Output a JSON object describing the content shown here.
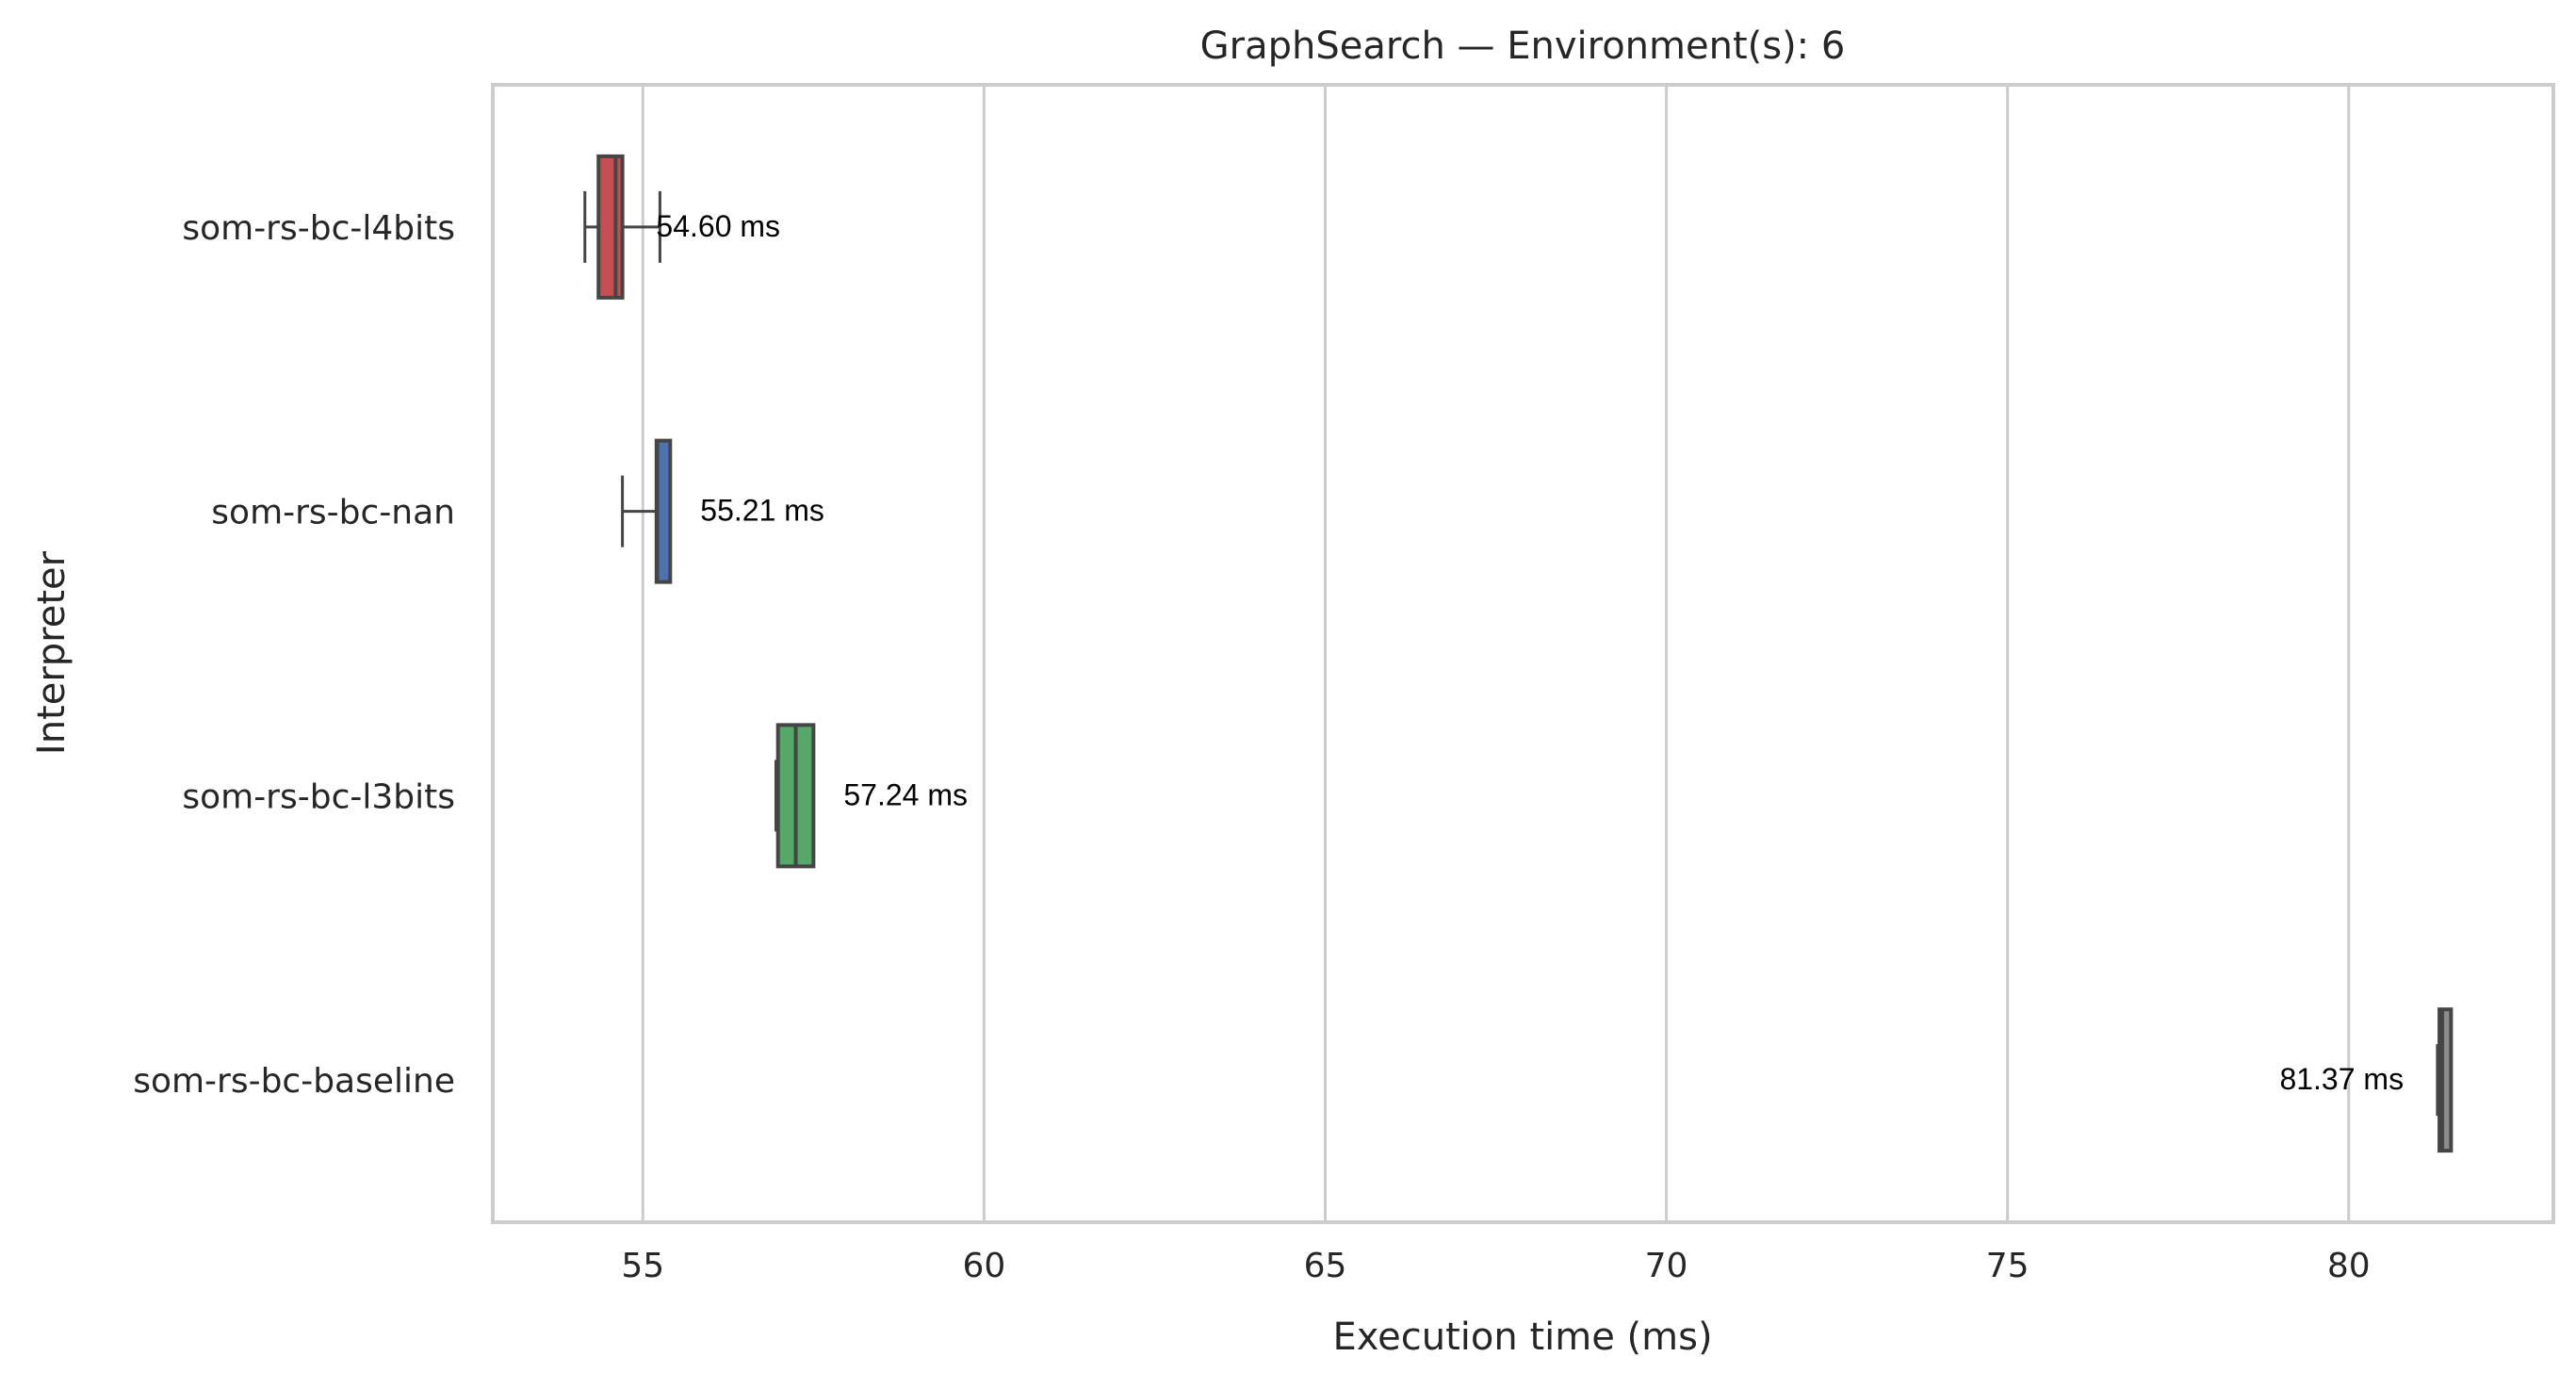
{
  "chart_data": {
    "type": "box",
    "title": "GraphSearch — Environment(s): 6",
    "xlabel": "Execution time (ms)",
    "ylabel": "Interpreter",
    "xlim": [
      52.8,
      83.0
    ],
    "xticks": [
      55,
      60,
      65,
      70,
      75,
      80
    ],
    "grid": "vertical",
    "orientation": "horizontal",
    "series": [
      {
        "name": "som-rs-bc-l4bits",
        "color": "#c44e52",
        "whisker_low": 54.15,
        "q1": 54.35,
        "median": 54.6,
        "q3": 54.7,
        "whisker_high": 55.25,
        "label": "54.60 ms"
      },
      {
        "name": "som-rs-bc-nan",
        "color": "#4c72b0",
        "whisker_low": 54.7,
        "q1": 55.2,
        "median": 55.21,
        "q3": 55.4,
        "whisker_high": 55.4,
        "label": "55.21 ms"
      },
      {
        "name": "som-rs-bc-l3bits",
        "color": "#55a868",
        "whisker_low": 56.95,
        "q1": 56.98,
        "median": 57.24,
        "q3": 57.5,
        "whisker_high": 57.5,
        "label": "57.24 ms"
      },
      {
        "name": "som-rs-bc-baseline",
        "color": "#8c8c8c",
        "whisker_low": 81.3,
        "q1": 81.33,
        "median": 81.37,
        "q3": 81.5,
        "whisker_high": 81.5,
        "label": "81.37 ms"
      }
    ]
  }
}
